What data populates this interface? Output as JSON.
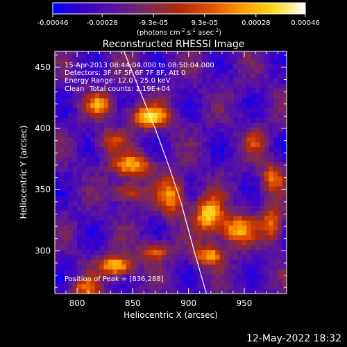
{
  "chart_data": {
    "type": "heatmap",
    "title": "Reconstructed RHESSI Image",
    "xlabel": "Heliocentric X (arcsec)",
    "ylabel": "Heliocentric Y (arcsec)",
    "xlim": [
      780,
      988
    ],
    "ylim": [
      265,
      463
    ],
    "xticks": [
      800,
      850,
      900,
      950
    ],
    "yticks": [
      300,
      350,
      400,
      450
    ],
    "colorbar": {
      "ticks": [
        "-0.00046",
        "-0.00028",
        "-9.3e-05",
        "9.3e-05",
        "0.00028",
        "0.00046"
      ],
      "tick_values": [
        -0.00046,
        -0.00028,
        -9.3e-05,
        9.3e-05,
        0.00028,
        0.00046
      ],
      "range": [
        -0.00046,
        0.00046
      ],
      "label_main": "(photons cm",
      "label_exp1": "-2",
      "label_s": " s",
      "label_exp2": "-1",
      "label_asec": " asec",
      "label_exp3": "-2",
      "label_end": ")",
      "colormap": [
        "#0000ff",
        "#3a00c8",
        "#5a14a0",
        "#7a2a5a",
        "#b02808",
        "#e05000",
        "#ff9a00",
        "#ffd81a",
        "#ffffff"
      ]
    },
    "annotations": {
      "time_range": "15-Apr-2013 08:44:04.000 to 08:50:04.000",
      "detectors": "Detectors: 3F 4F 5F 6F 7F 8F, Att 0",
      "energy": "Energy Range: 12.0 - 25.0 keV",
      "algorithm": "Clean",
      "counts": "Total counts: 1.19E+04",
      "peak": "Position of Peak = [836,288]"
    },
    "peak_position": [
      836,
      288
    ],
    "limb_line": [
      [
        842,
        463
      ],
      [
        870,
        400
      ],
      [
        882,
        370
      ],
      [
        893,
        340
      ],
      [
        905,
        300
      ],
      [
        916,
        265
      ]
    ],
    "bright_regions": [
      {
        "x": 820,
        "y": 420,
        "amp": 0.7,
        "sx": 12,
        "sy": 9
      },
      {
        "x": 865,
        "y": 410,
        "amp": 0.9,
        "sx": 18,
        "sy": 9
      },
      {
        "x": 830,
        "y": 390,
        "amp": 0.5,
        "sx": 12,
        "sy": 9
      },
      {
        "x": 850,
        "y": 370,
        "amp": 0.8,
        "sx": 18,
        "sy": 9
      },
      {
        "x": 845,
        "y": 348,
        "amp": 0.6,
        "sx": 14,
        "sy": 8
      },
      {
        "x": 885,
        "y": 345,
        "amp": 0.75,
        "sx": 12,
        "sy": 16
      },
      {
        "x": 918,
        "y": 330,
        "amp": 0.95,
        "sx": 12,
        "sy": 14
      },
      {
        "x": 942,
        "y": 318,
        "amp": 0.8,
        "sx": 16,
        "sy": 12
      },
      {
        "x": 975,
        "y": 322,
        "amp": 0.7,
        "sx": 10,
        "sy": 14
      },
      {
        "x": 918,
        "y": 297,
        "amp": 0.8,
        "sx": 14,
        "sy": 8
      },
      {
        "x": 836,
        "y": 288,
        "amp": 1.0,
        "sx": 14,
        "sy": 8
      },
      {
        "x": 808,
        "y": 270,
        "amp": 0.6,
        "sx": 12,
        "sy": 8
      },
      {
        "x": 870,
        "y": 300,
        "amp": 0.6,
        "sx": 14,
        "sy": 8
      },
      {
        "x": 960,
        "y": 390,
        "amp": 0.4,
        "sx": 10,
        "sy": 10
      },
      {
        "x": 975,
        "y": 360,
        "amp": 0.6,
        "sx": 10,
        "sy": 12
      }
    ]
  },
  "footer": {
    "date": "12-May-2022 18:32"
  }
}
